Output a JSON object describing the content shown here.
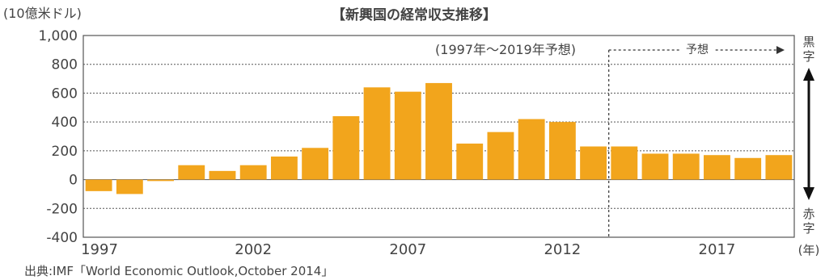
{
  "chart_data": {
    "type": "bar",
    "title": "【新興国の経常収支推移】",
    "unit_label": "(10億米ドル)",
    "period_note": "(1997年〜2019年予想)",
    "forecast_label": "予想",
    "surplus_label": "黒字",
    "deficit_label": "赤字",
    "year_unit": "(年)",
    "source": "出典:IMF「World Economic Outlook,October 2014」",
    "ylim": [
      -400,
      1000
    ],
    "yticks": [
      1000,
      800,
      600,
      400,
      200,
      0,
      -200,
      -400
    ],
    "ytick_labels": [
      "1,000",
      "800",
      "600",
      "400",
      "200",
      "0",
      "-200",
      "-400"
    ],
    "xtick_labels": [
      "1997",
      "2002",
      "2007",
      "2012",
      "2017"
    ],
    "forecast_start": 2014,
    "categories": [
      1997,
      1998,
      1999,
      2000,
      2001,
      2002,
      2003,
      2004,
      2005,
      2006,
      2007,
      2008,
      2009,
      2010,
      2011,
      2012,
      2013,
      2014,
      2015,
      2016,
      2017,
      2018,
      2019
    ],
    "values": [
      -80,
      -100,
      -10,
      100,
      60,
      100,
      160,
      220,
      440,
      640,
      610,
      670,
      250,
      330,
      420,
      400,
      230,
      230,
      180,
      180,
      170,
      150,
      170
    ],
    "bar_color": "#f2a51c",
    "grid": true
  }
}
